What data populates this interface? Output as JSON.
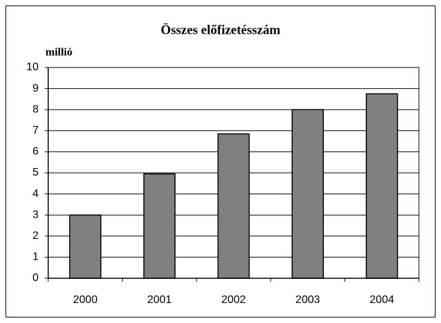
{
  "chart_data": {
    "type": "bar",
    "title": "Összes előfizetésszám",
    "y_label": "millió",
    "categories": [
      "2000",
      "2001",
      "2002",
      "2003",
      "2004"
    ],
    "values": [
      3,
      4.95,
      6.85,
      8,
      8.75
    ],
    "color": "#808080",
    "ylim": [
      0,
      10
    ],
    "yticks": [
      0,
      1,
      2,
      3,
      4,
      5,
      6,
      7,
      8,
      9,
      10
    ],
    "grid": true
  }
}
